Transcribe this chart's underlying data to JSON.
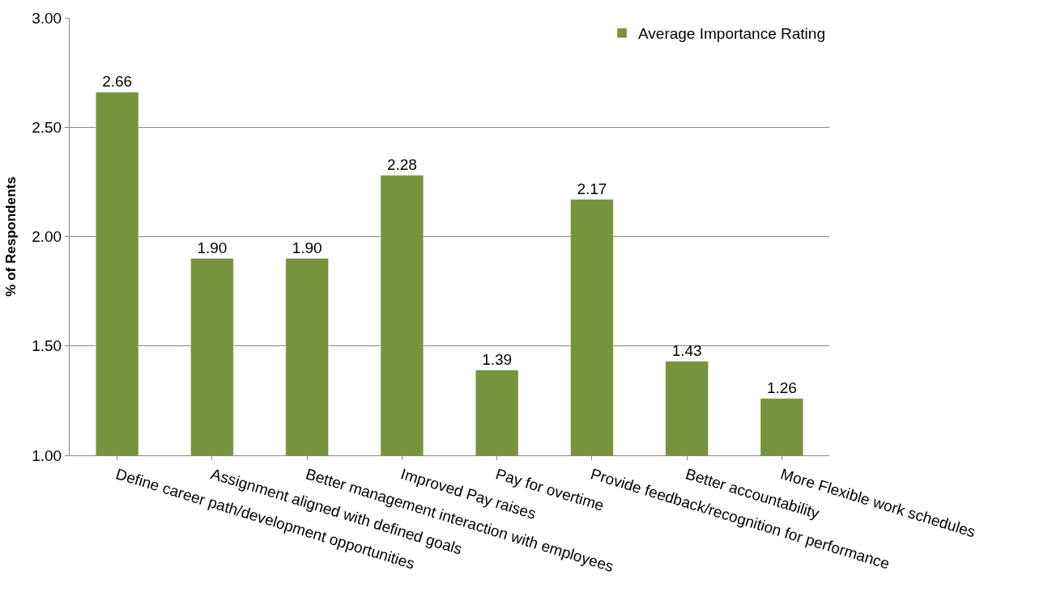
{
  "chart_data": {
    "type": "bar",
    "ylabel": "% of Respondents",
    "categories": [
      "Define career path/development opportunities",
      "Assignment aligned with defined goals",
      "Better management interaction with employees",
      "Improved Pay raises",
      "Pay for overtime",
      "Provide feedback/recognition for performance",
      "Better accountability",
      "More Flexible work schedules"
    ],
    "series": [
      {
        "name": "Average Importance Rating",
        "color": "#77933c",
        "values": [
          2.66,
          1.9,
          1.9,
          2.28,
          1.39,
          2.17,
          1.43,
          1.26
        ],
        "value_labels": [
          "2.66",
          "1.90",
          "1.90",
          "2.28",
          "1.39",
          "2.17",
          "1.43",
          "1.26"
        ]
      }
    ],
    "ylim": [
      1,
      3
    ],
    "yticks": [
      {
        "value": 1,
        "label": "1.00"
      },
      {
        "value": 1.5,
        "label": "1.50"
      },
      {
        "value": 2,
        "label": "2.00"
      },
      {
        "value": 2.5,
        "label": "2.50"
      },
      {
        "value": 3,
        "label": "3.00"
      }
    ],
    "grid": "y",
    "legend": "top right"
  }
}
